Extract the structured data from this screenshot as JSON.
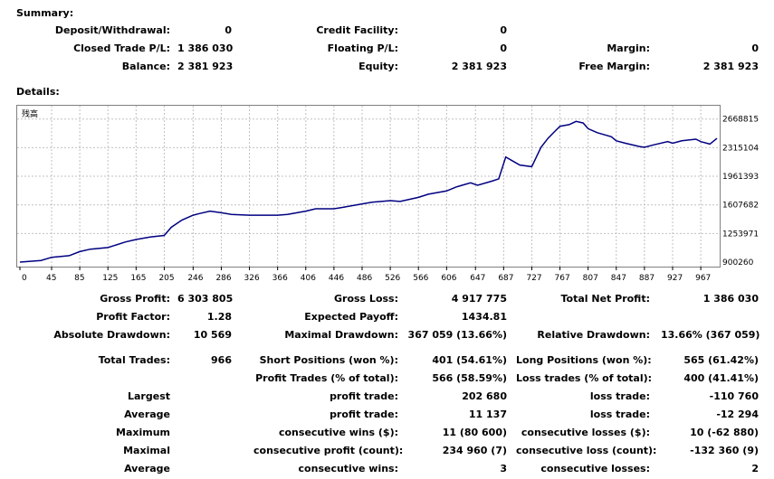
{
  "summary": {
    "title": "Summary:",
    "deposit_withdrawal": {
      "label": "Deposit/Withdrawal:",
      "value": "0"
    },
    "credit_facility": {
      "label": "Credit Facility:",
      "value": "0"
    },
    "closed_trade_pl": {
      "label": "Closed Trade P/L:",
      "value": "1 386 030"
    },
    "floating_pl": {
      "label": "Floating P/L:",
      "value": "0"
    },
    "margin": {
      "label": "Margin:",
      "value": "0"
    },
    "balance": {
      "label": "Balance:",
      "value": "2 381 923"
    },
    "equity": {
      "label": "Equity:",
      "value": "2 381 923"
    },
    "free_margin": {
      "label": "Free Margin:",
      "value": "2 381 923"
    }
  },
  "details": {
    "title": "Details:",
    "chart_caption": "残高"
  },
  "chart_data": {
    "type": "line",
    "series_color": "#000080",
    "grid": true,
    "xlim": [
      0,
      990
    ],
    "ylim": [
      900260,
      2800000
    ],
    "x_ticks": [
      "0",
      "45",
      "85",
      "125",
      "165",
      "205",
      "246",
      "286",
      "326",
      "366",
      "406",
      "446",
      "486",
      "526",
      "566",
      "606",
      "647",
      "687",
      "727",
      "767",
      "807",
      "847",
      "887",
      "927",
      "967"
    ],
    "y_ticks": [
      900260,
      1253971,
      1607682,
      1961393,
      2315104,
      2668815
    ],
    "x": [
      0,
      30,
      45,
      70,
      85,
      100,
      125,
      150,
      165,
      185,
      205,
      215,
      230,
      246,
      255,
      270,
      286,
      300,
      326,
      340,
      366,
      380,
      406,
      420,
      446,
      460,
      486,
      500,
      526,
      540,
      566,
      580,
      606,
      620,
      640,
      650,
      670,
      680,
      690,
      700,
      710,
      727,
      740,
      750,
      760,
      767,
      780,
      790,
      800,
      807,
      820,
      840,
      847,
      860,
      880,
      887,
      900,
      920,
      927,
      940,
      960,
      967,
      980,
      990
    ],
    "y": [
      900260,
      920000,
      960000,
      980000,
      1030000,
      1060000,
      1080000,
      1150000,
      1180000,
      1210000,
      1230000,
      1330000,
      1420000,
      1480000,
      1500000,
      1530000,
      1510000,
      1490000,
      1480000,
      1480000,
      1480000,
      1490000,
      1530000,
      1560000,
      1560000,
      1580000,
      1620000,
      1640000,
      1660000,
      1650000,
      1700000,
      1740000,
      1780000,
      1830000,
      1880000,
      1850000,
      1900000,
      1930000,
      2200000,
      2150000,
      2100000,
      2080000,
      2320000,
      2430000,
      2520000,
      2580000,
      2600000,
      2640000,
      2620000,
      2550000,
      2500000,
      2450000,
      2400000,
      2370000,
      2330000,
      2320000,
      2350000,
      2390000,
      2370000,
      2400000,
      2420000,
      2390000,
      2360000,
      2430000
    ]
  },
  "stats": {
    "gross_profit": {
      "label": "Gross Profit:",
      "value": "6 303 805"
    },
    "gross_loss": {
      "label": "Gross Loss:",
      "value": "4 917 775"
    },
    "total_net_profit": {
      "label": "Total Net Profit:",
      "value": "1 386 030"
    },
    "profit_factor": {
      "label": "Profit Factor:",
      "value": "1.28"
    },
    "expected_payoff": {
      "label": "Expected Payoff:",
      "value": "1434.81"
    },
    "absolute_drawdown": {
      "label": "Absolute Drawdown:",
      "value": "10 569"
    },
    "maximal_drawdown": {
      "label": "Maximal Drawdown:",
      "value": "367 059 (13.66%)"
    },
    "relative_drawdown": {
      "label": "Relative Drawdown:",
      "value": "13.66% (367 059)"
    },
    "total_trades": {
      "label": "Total Trades:",
      "value": "966"
    },
    "short_positions": {
      "label": "Short Positions (won %):",
      "value": "401 (54.61%)"
    },
    "long_positions": {
      "label": "Long Positions (won %):",
      "value": "565 (61.42%)"
    },
    "profit_trades": {
      "label": "Profit Trades (% of total):",
      "value": "566 (58.59%)"
    },
    "loss_trades": {
      "label": "Loss trades (% of total):",
      "value": "400 (41.41%)"
    },
    "largest": {
      "label": "Largest",
      "profit_label": "profit trade:",
      "profit_value": "202 680",
      "loss_label": "loss trade:",
      "loss_value": "-110 760"
    },
    "average": {
      "label": "Average",
      "profit_label": "profit trade:",
      "profit_value": "11 137",
      "loss_label": "loss trade:",
      "loss_value": "-12 294"
    },
    "maximum": {
      "label": "Maximum",
      "profit_label": "consecutive wins ($):",
      "profit_value": "11 (80 600)",
      "loss_label": "consecutive losses ($):",
      "loss_value": "10 (-62 880)"
    },
    "maximal": {
      "label": "Maximal",
      "profit_label": "consecutive profit (count):",
      "profit_value": "234 960 (7)",
      "loss_label": "consecutive loss (count):",
      "loss_value": "-132 360 (9)"
    },
    "average_consec": {
      "label": "Average",
      "profit_label": "consecutive wins:",
      "profit_value": "3",
      "loss_label": "consecutive losses:",
      "loss_value": "2"
    }
  }
}
